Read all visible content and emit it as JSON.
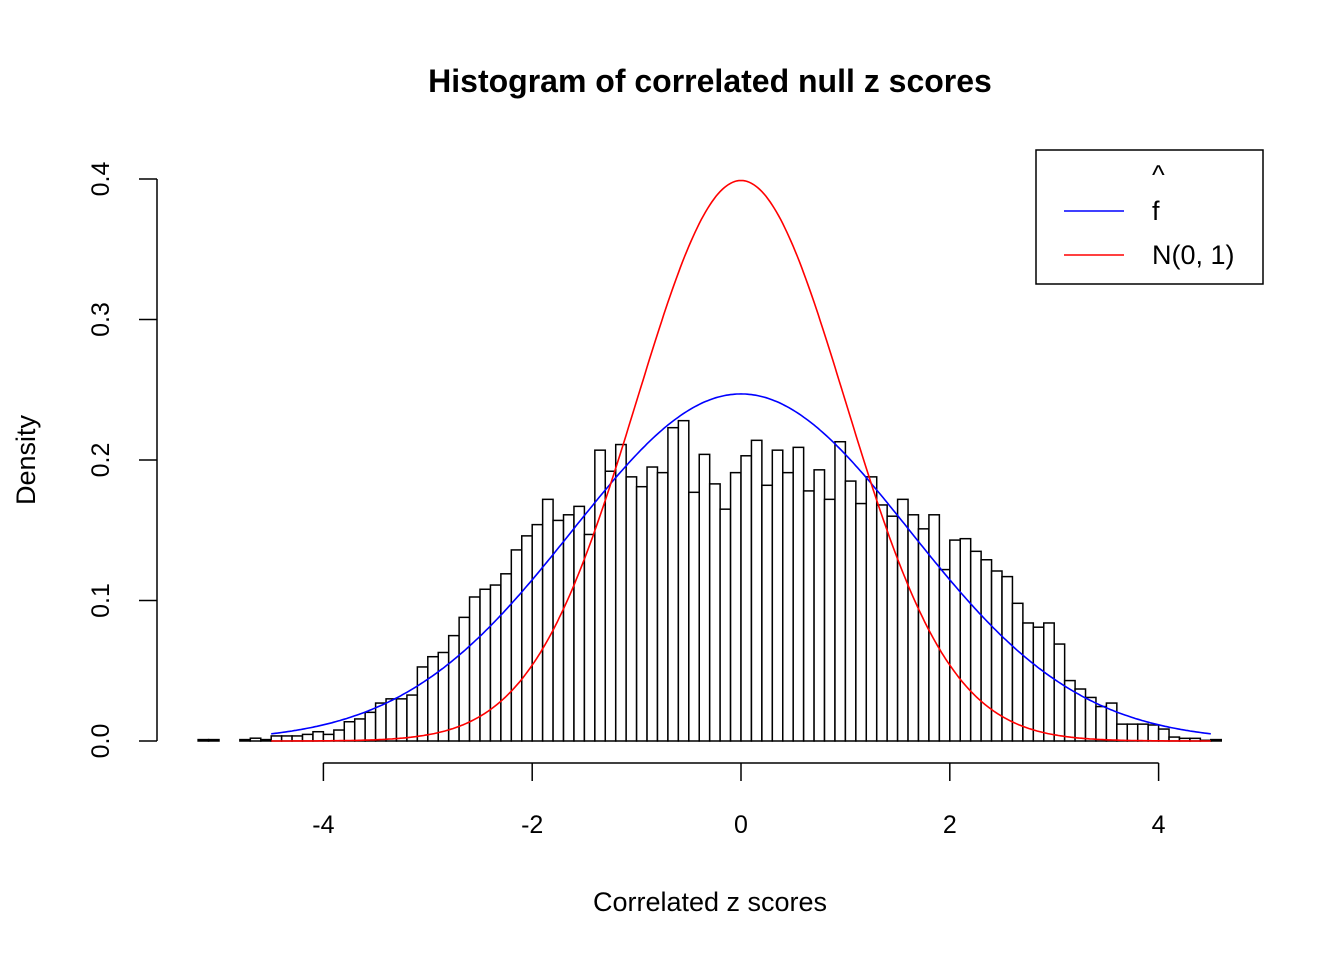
{
  "chart_data": {
    "type": "bar",
    "title": "Histogram of correlated null z scores",
    "xlabel": "Correlated z scores",
    "ylabel": "Density",
    "xlim": [
      -5.2,
      4.6
    ],
    "ylim": [
      0,
      0.4
    ],
    "x_ticks": [
      "-4",
      "-2",
      "0",
      "2",
      "4"
    ],
    "x_tick_values": [
      -4,
      -2,
      0,
      2,
      4
    ],
    "y_ticks": [
      "0.0",
      "0.1",
      "0.2",
      "0.3",
      "0.4"
    ],
    "y_tick_values": [
      0,
      0.1,
      0.2,
      0.3,
      0.4
    ],
    "grid": false,
    "bins": {
      "start": -5.2,
      "width": 0.1,
      "density": [
        0.001,
        0.001,
        0,
        0,
        0.001,
        0.002,
        0.001,
        0.0036,
        0.0036,
        0.0036,
        0.0047,
        0.0066,
        0.0047,
        0.0078,
        0.0137,
        0.0157,
        0.0204,
        0.027,
        0.03,
        0.03,
        0.0327,
        0.0527,
        0.06,
        0.063,
        0.075,
        0.088,
        0.1025,
        0.108,
        0.111,
        0.119,
        0.136,
        0.146,
        0.154,
        0.172,
        0.157,
        0.161,
        0.167,
        0.147,
        0.207,
        0.192,
        0.211,
        0.188,
        0.181,
        0.195,
        0.191,
        0.223,
        0.228,
        0.177,
        0.204,
        0.183,
        0.165,
        0.191,
        0.203,
        0.214,
        0.182,
        0.207,
        0.191,
        0.209,
        0.178,
        0.193,
        0.172,
        0.213,
        0.185,
        0.169,
        0.188,
        0.168,
        0.16,
        0.172,
        0.161,
        0.151,
        0.161,
        0.122,
        0.143,
        0.144,
        0.135,
        0.129,
        0.121,
        0.117,
        0.098,
        0.084,
        0.081,
        0.084,
        0.069,
        0.043,
        0.037,
        0.031,
        0.0245,
        0.027,
        0.012,
        0.012,
        0.012,
        0.0114,
        0.0085,
        0.0028,
        0.0019,
        0.0019,
        0.0005,
        0.001
      ]
    },
    "curves": [
      {
        "name": "f̂",
        "legend_text": "f",
        "color": "#0000ff",
        "mean": 0,
        "sd": 1.615,
        "x_range": [
          -4.5,
          4.5
        ]
      },
      {
        "name": "N(0, 1)",
        "legend_text": "N(0, 1)",
        "color": "#ff0000",
        "mean": 0,
        "sd": 1,
        "x_range": [
          -4.5,
          4.5
        ]
      }
    ],
    "legend_placement": "top-right",
    "legend_hat": "^"
  }
}
